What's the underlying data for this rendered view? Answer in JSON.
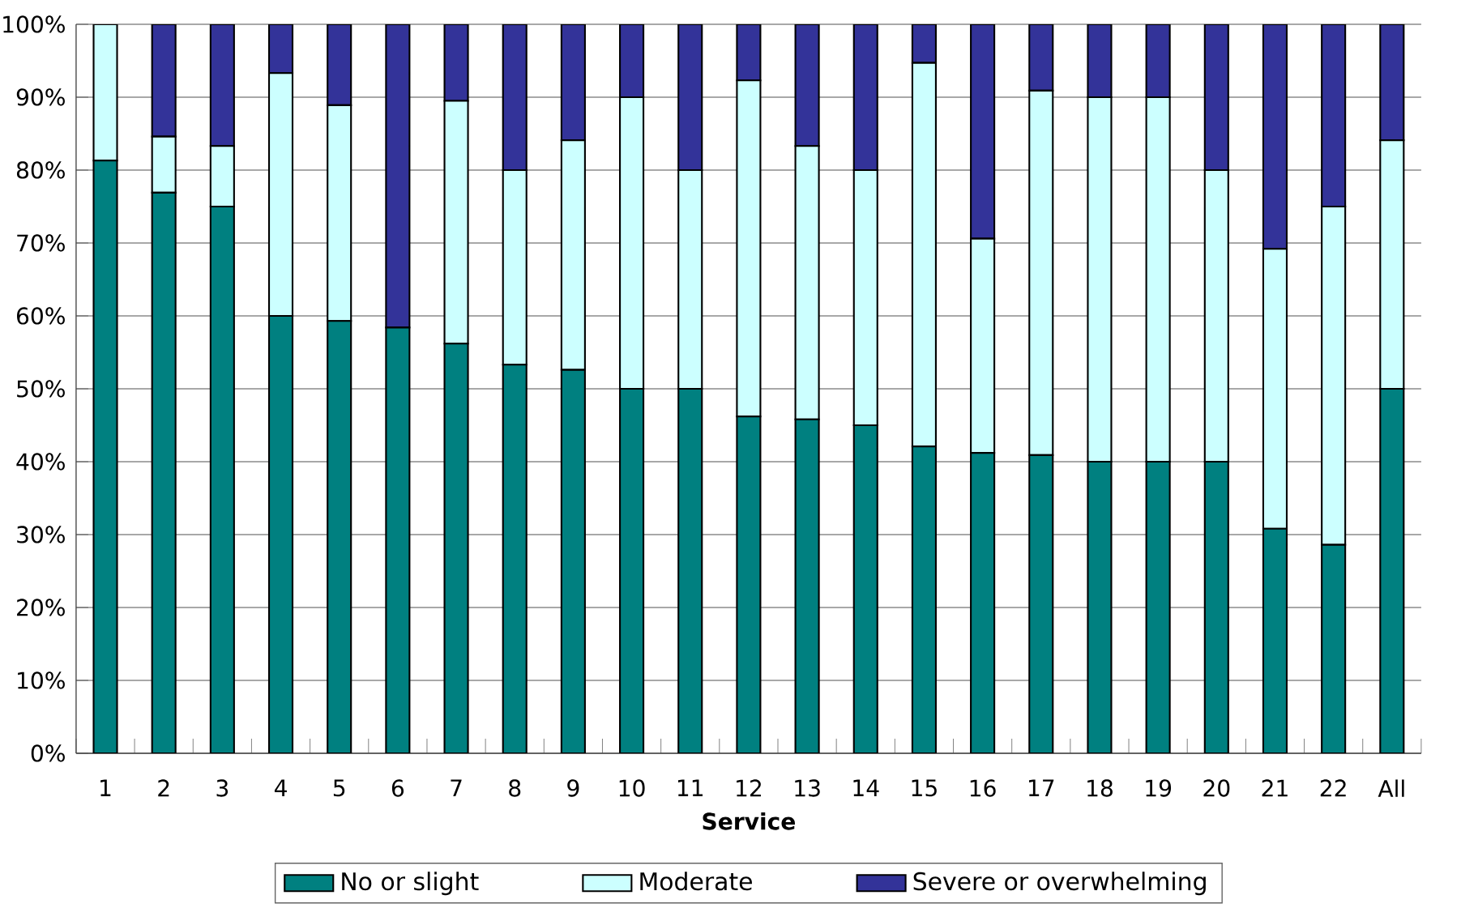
{
  "chart_data": {
    "type": "bar",
    "stacked": true,
    "xlabel": "Service",
    "categories": [
      "1",
      "2",
      "3",
      "4",
      "5",
      "6",
      "7",
      "8",
      "9",
      "10",
      "11",
      "12",
      "13",
      "14",
      "15",
      "16",
      "17",
      "18",
      "19",
      "20",
      "21",
      "22",
      "All"
    ],
    "series": [
      {
        "name": "No or slight",
        "color": "#008080",
        "values": [
          81.3,
          76.9,
          75,
          60,
          59.3,
          58.4,
          56.2,
          53.3,
          52.6,
          50,
          50,
          46.2,
          45.8,
          45,
          42.1,
          41.2,
          40.9,
          40,
          40,
          40,
          30.8,
          28.6,
          50
        ]
      },
      {
        "name": "Moderate",
        "color": "#ccffff",
        "values": [
          18.7,
          7.7,
          8.3,
          33.3,
          29.6,
          0,
          33.3,
          26.7,
          31.5,
          40,
          30,
          46.1,
          37.5,
          35,
          52.6,
          29.4,
          50,
          50,
          50,
          40,
          38.4,
          46.4,
          34.1
        ]
      },
      {
        "name": "Severe or overwhelming",
        "color": "#333399",
        "values": [
          0,
          15.4,
          16.7,
          6.7,
          11.1,
          41.6,
          10.5,
          20,
          15.9,
          10,
          20,
          7.7,
          16.7,
          20,
          5.3,
          29.4,
          9.1,
          10,
          10,
          20,
          30.8,
          25,
          15.9
        ]
      }
    ],
    "ylim": [
      0,
      100
    ],
    "yticks": [
      {
        "value": 0,
        "label": "0%"
      },
      {
        "value": 10,
        "label": "10%"
      },
      {
        "value": 20,
        "label": "20%"
      },
      {
        "value": 30,
        "label": "30%"
      },
      {
        "value": 40,
        "label": "40%"
      },
      {
        "value": 50,
        "label": "50%"
      },
      {
        "value": 60,
        "label": "60%"
      },
      {
        "value": 70,
        "label": "70%"
      },
      {
        "value": 80,
        "label": "80%"
      },
      {
        "value": 90,
        "label": "90%"
      },
      {
        "value": 100,
        "label": "100%"
      }
    ],
    "grid": "y",
    "legend": "bottom"
  }
}
